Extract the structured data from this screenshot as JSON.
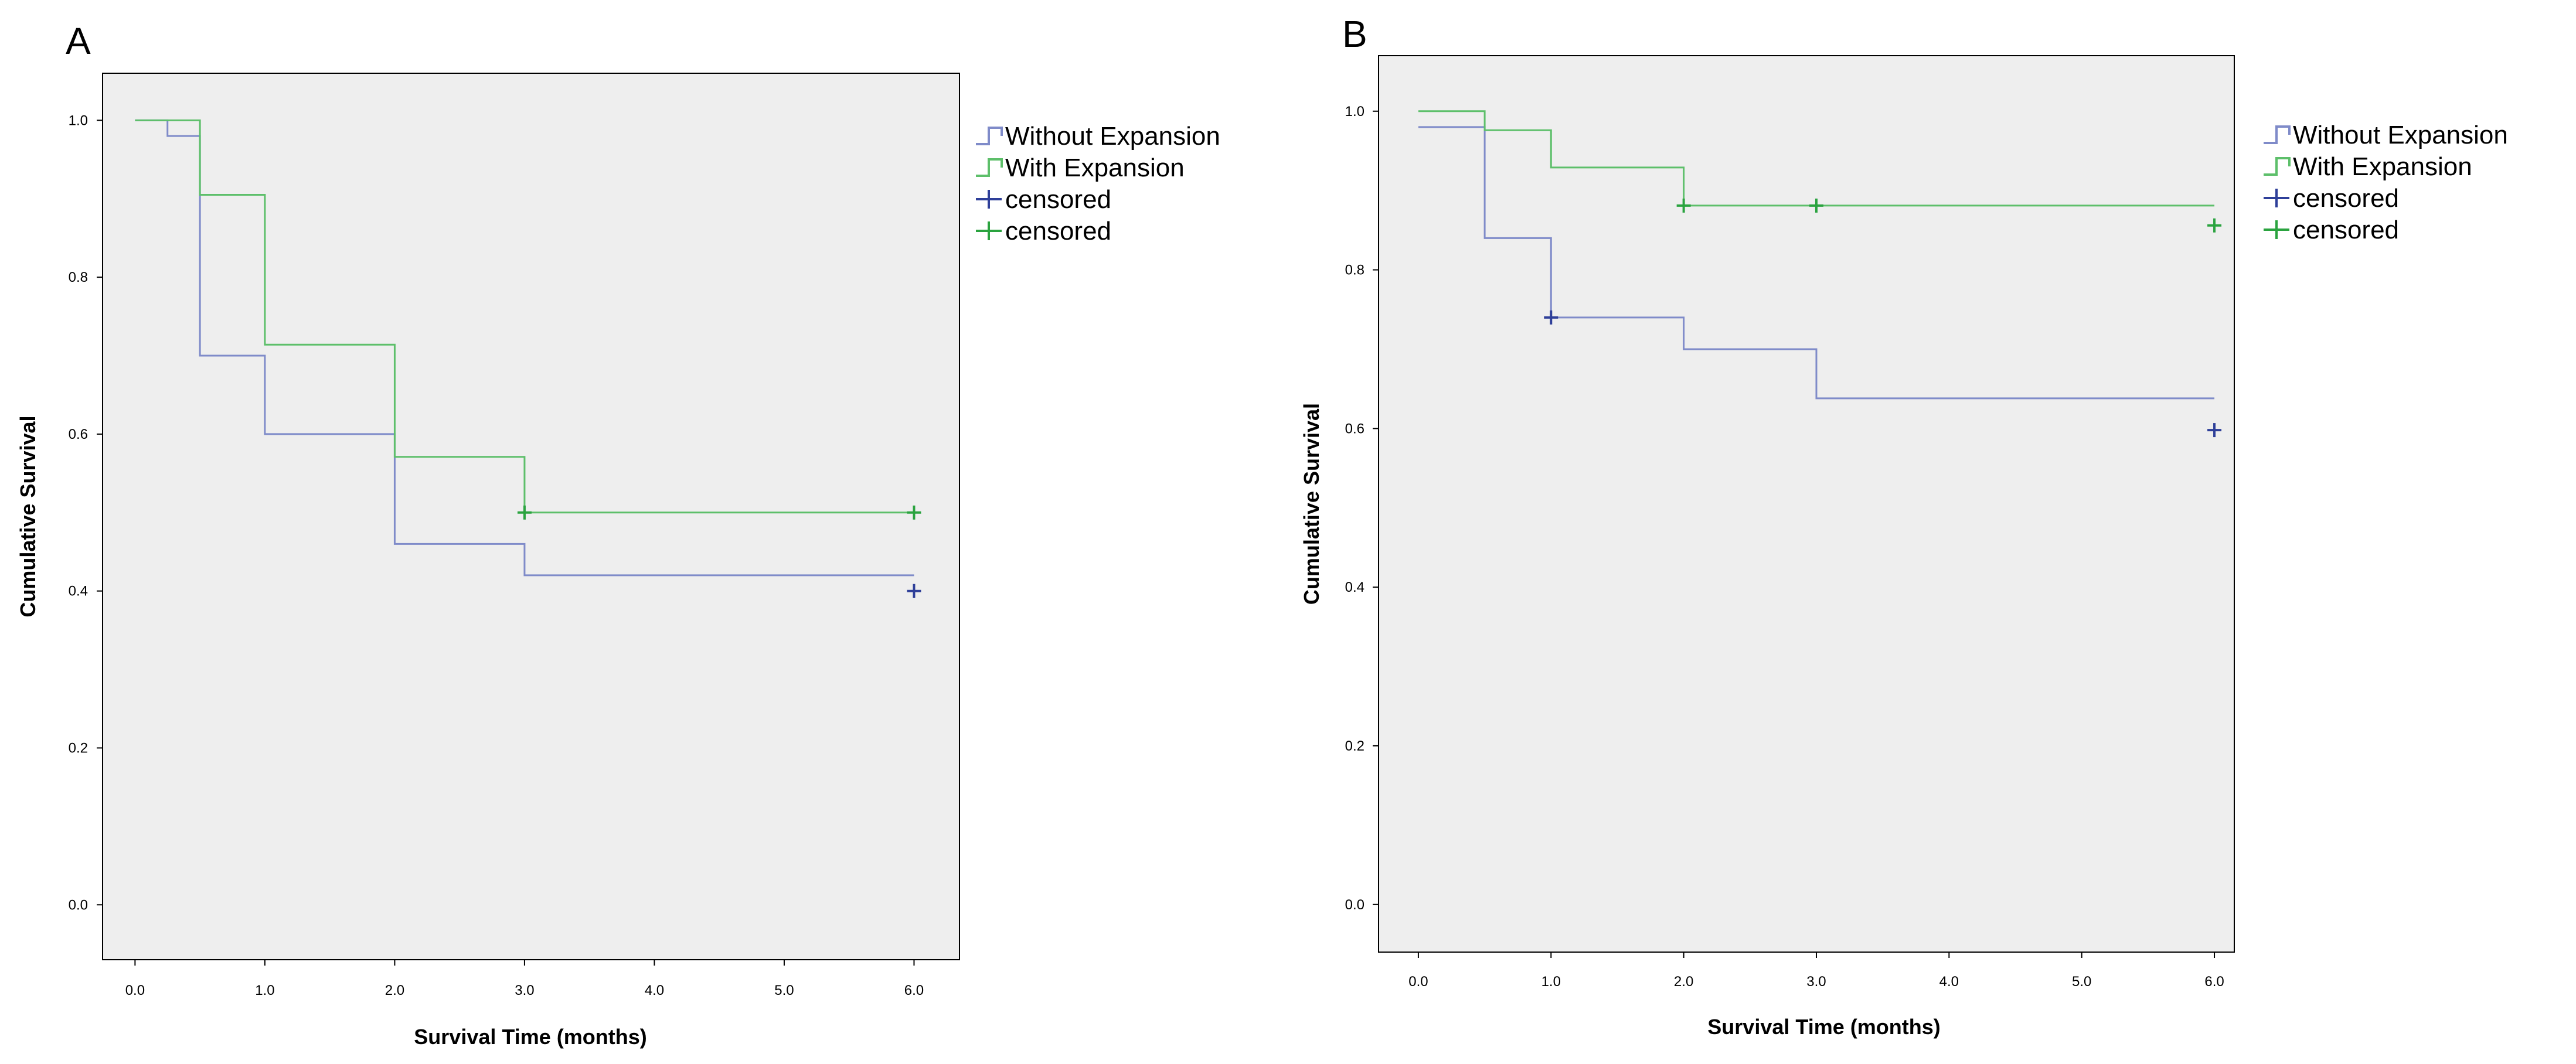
{
  "colors": {
    "without_expansion": "#7F8BC9",
    "with_expansion": "#5DBF6A",
    "censored_without": "#2E3F99",
    "censored_with": "#2AA33F",
    "plot_background": "#EEEEEE",
    "frame": "#000000"
  },
  "chart_data": [
    {
      "type": "line",
      "panel_label": "A",
      "xlabel": "Survival Time (months)",
      "ylabel": "Cumulative Survival",
      "xlim": [
        -0.25,
        6.35
      ],
      "ylim": [
        -0.07,
        1.06
      ],
      "x_ticks": [
        0,
        1,
        2,
        3,
        4,
        5,
        6
      ],
      "x_tick_labels": [
        "0.0",
        "1.0",
        "2.0",
        "3.0",
        "4.0",
        "5.0",
        "6.0"
      ],
      "y_ticks": [
        0,
        0.2,
        0.4,
        0.6,
        0.8,
        1.0
      ],
      "y_tick_labels": [
        "0.0",
        "0.2",
        "0.4",
        "0.6",
        "0.8",
        "1.0"
      ],
      "legend_position": "outside-right",
      "legend": [
        "Without Expansion",
        "With Expansion",
        "censored",
        "censored"
      ],
      "series": [
        {
          "name": "Without Expansion",
          "style": "step",
          "color_key": "without_expansion",
          "x": [
            0,
            0.25,
            0.5,
            1.0,
            2.0,
            3.0,
            6.0
          ],
          "y": [
            1.0,
            0.98,
            0.7,
            0.6,
            0.46,
            0.42,
            0.42
          ]
        },
        {
          "name": "With Expansion",
          "style": "step",
          "color_key": "with_expansion",
          "x": [
            0,
            0.5,
            1.0,
            2.0,
            3.0,
            6.0
          ],
          "y": [
            1.0,
            0.905,
            0.714,
            0.571,
            0.5,
            0.5
          ]
        },
        {
          "name": "censored",
          "style": "marker",
          "group": "Without Expansion",
          "color_key": "censored_without",
          "x": [
            6.0
          ],
          "y": [
            0.4
          ]
        },
        {
          "name": "censored",
          "style": "marker",
          "group": "With Expansion",
          "color_key": "censored_with",
          "x": [
            3.0,
            6.0
          ],
          "y": [
            0.5,
            0.5
          ]
        }
      ]
    },
    {
      "type": "line",
      "panel_label": "B",
      "xlabel": "Survival Time (months)",
      "ylabel": "Cumulative Survival",
      "xlim": [
        -0.3,
        6.15
      ],
      "ylim": [
        -0.06,
        1.07
      ],
      "x_ticks": [
        0,
        1,
        2,
        3,
        4,
        5,
        6
      ],
      "x_tick_labels": [
        "0.0",
        "1.0",
        "2.0",
        "3.0",
        "4.0",
        "5.0",
        "6.0"
      ],
      "y_ticks": [
        0,
        0.2,
        0.4,
        0.6,
        0.8,
        1.0
      ],
      "y_tick_labels": [
        "0.0",
        "0.2",
        "0.4",
        "0.6",
        "0.8",
        "1.0"
      ],
      "legend_position": "outside-right",
      "legend": [
        "Without Expansion",
        "With Expansion",
        "censored",
        "censored"
      ],
      "series": [
        {
          "name": "Without Expansion",
          "style": "step",
          "color_key": "without_expansion",
          "x": [
            0,
            0.5,
            1.0,
            2.0,
            3.0,
            6.0
          ],
          "y": [
            0.98,
            0.84,
            0.74,
            0.7,
            0.638,
            0.638
          ]
        },
        {
          "name": "With Expansion",
          "style": "step",
          "color_key": "with_expansion",
          "x": [
            0,
            0.5,
            1.0,
            2.0,
            3.0,
            6.0
          ],
          "y": [
            1.0,
            0.976,
            0.929,
            0.881,
            0.881,
            0.881
          ]
        },
        {
          "name": "censored",
          "style": "marker",
          "group": "Without Expansion",
          "color_key": "censored_without",
          "x": [
            1.0,
            6.0
          ],
          "y": [
            0.74,
            0.598
          ]
        },
        {
          "name": "censored",
          "style": "marker",
          "group": "With Expansion",
          "color_key": "censored_with",
          "x": [
            2.0,
            3.0,
            6.0
          ],
          "y": [
            0.881,
            0.881,
            0.856
          ]
        }
      ]
    }
  ]
}
